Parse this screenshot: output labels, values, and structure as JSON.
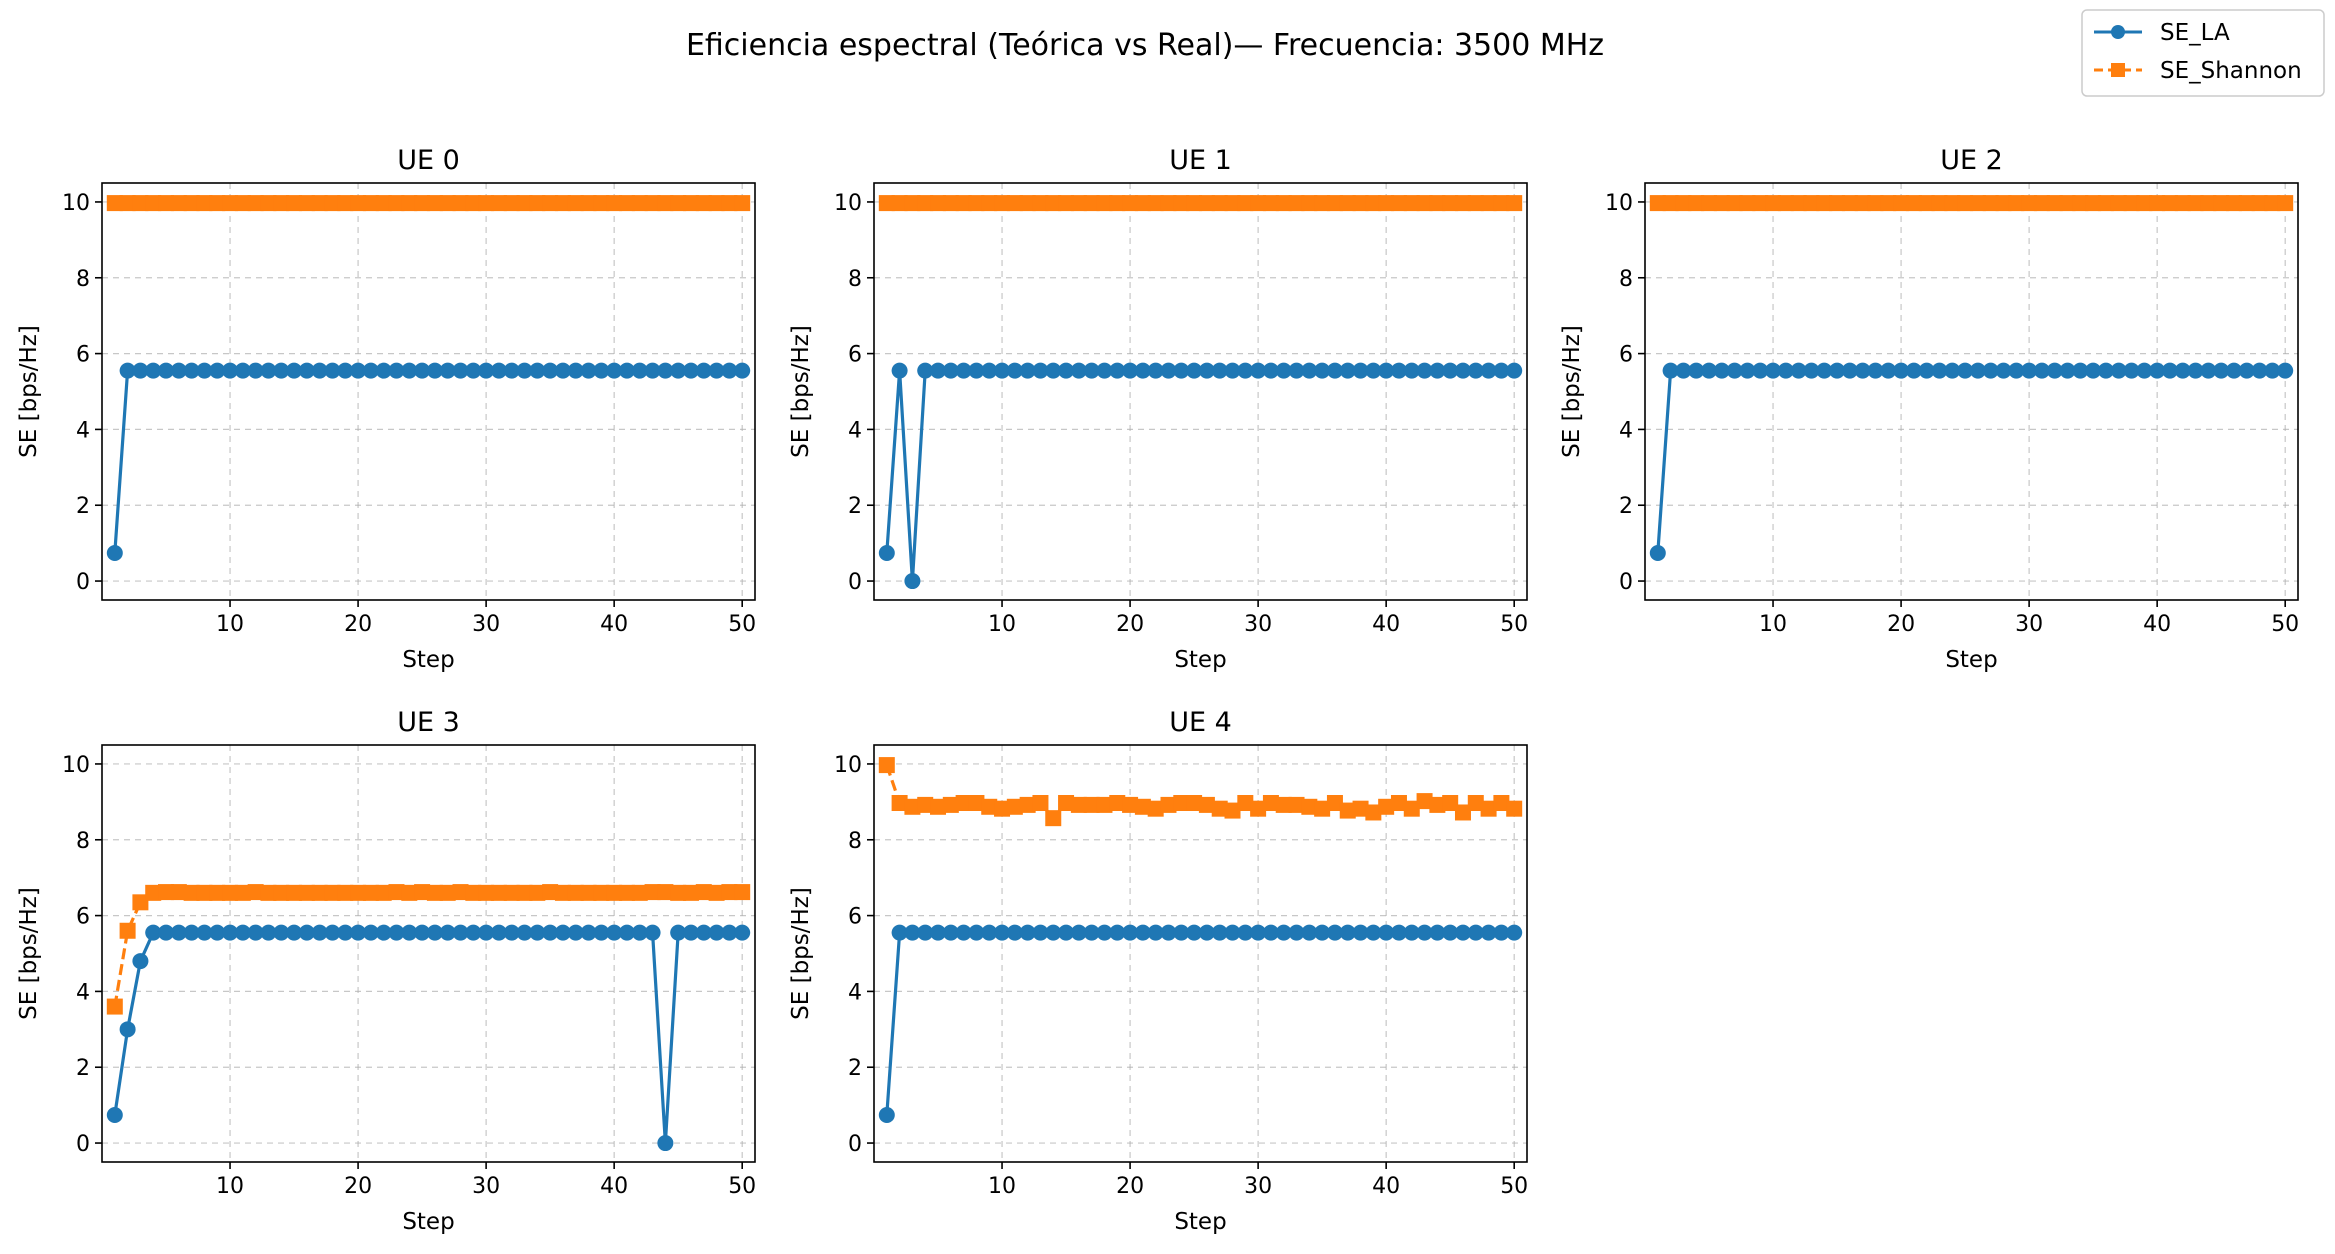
{
  "figure": {
    "title": "Eficiencia espectral (Teórica vs Real)— Frecuencia: 3500 MHz",
    "legend": [
      {
        "label": "SE_LA",
        "color": "#1f77b4",
        "marker": "circle",
        "line": "solid"
      },
      {
        "label": "SE_Shannon",
        "color": "#ff7f0e",
        "marker": "square",
        "line": "dashed"
      }
    ],
    "legend_placement": "top-right"
  },
  "chart_data": [
    {
      "type": "line",
      "title": "UE 0",
      "xlabel": "Step",
      "ylabel": "SE [bps/Hz]",
      "xlim": [
        0,
        51
      ],
      "ylim": [
        -0.5,
        10.5
      ],
      "xticks": [
        10,
        20,
        30,
        40,
        50
      ],
      "yticks": [
        0,
        2,
        4,
        6,
        8,
        10
      ],
      "grid": true,
      "series": [
        {
          "name": "SE_LA",
          "color": "#1f77b4",
          "x_start": 1,
          "values": [
            0.74,
            5.55,
            5.55,
            5.55,
            5.55,
            5.55,
            5.55,
            5.55,
            5.55,
            5.55,
            5.55,
            5.55,
            5.55,
            5.55,
            5.55,
            5.55,
            5.55,
            5.55,
            5.55,
            5.55,
            5.55,
            5.55,
            5.55,
            5.55,
            5.55,
            5.55,
            5.55,
            5.55,
            5.55,
            5.55,
            5.55,
            5.55,
            5.55,
            5.55,
            5.55,
            5.55,
            5.55,
            5.55,
            5.55,
            5.55,
            5.55,
            5.55,
            5.55,
            5.55,
            5.55,
            5.55,
            5.55,
            5.55,
            5.55,
            5.55
          ]
        },
        {
          "name": "SE_Shannon",
          "color": "#ff7f0e",
          "x_start": 1,
          "values": [
            9.97,
            9.97,
            9.97,
            9.97,
            9.97,
            9.97,
            9.97,
            9.97,
            9.97,
            9.97,
            9.97,
            9.97,
            9.97,
            9.97,
            9.97,
            9.97,
            9.97,
            9.97,
            9.97,
            9.97,
            9.97,
            9.97,
            9.97,
            9.97,
            9.97,
            9.97,
            9.97,
            9.97,
            9.97,
            9.97,
            9.97,
            9.97,
            9.97,
            9.97,
            9.97,
            9.97,
            9.97,
            9.97,
            9.97,
            9.97,
            9.97,
            9.97,
            9.97,
            9.97,
            9.97,
            9.97,
            9.97,
            9.97,
            9.97,
            9.97
          ]
        }
      ]
    },
    {
      "type": "line",
      "title": "UE 1",
      "xlabel": "Step",
      "ylabel": "SE [bps/Hz]",
      "xlim": [
        0,
        51
      ],
      "ylim": [
        -0.5,
        10.5
      ],
      "xticks": [
        10,
        20,
        30,
        40,
        50
      ],
      "yticks": [
        0,
        2,
        4,
        6,
        8,
        10
      ],
      "grid": true,
      "series": [
        {
          "name": "SE_LA",
          "color": "#1f77b4",
          "x_start": 1,
          "values": [
            0.74,
            5.55,
            0.0,
            5.55,
            5.55,
            5.55,
            5.55,
            5.55,
            5.55,
            5.55,
            5.55,
            5.55,
            5.55,
            5.55,
            5.55,
            5.55,
            5.55,
            5.55,
            5.55,
            5.55,
            5.55,
            5.55,
            5.55,
            5.55,
            5.55,
            5.55,
            5.55,
            5.55,
            5.55,
            5.55,
            5.55,
            5.55,
            5.55,
            5.55,
            5.55,
            5.55,
            5.55,
            5.55,
            5.55,
            5.55,
            5.55,
            5.55,
            5.55,
            5.55,
            5.55,
            5.55,
            5.55,
            5.55,
            5.55,
            5.55
          ]
        },
        {
          "name": "SE_Shannon",
          "color": "#ff7f0e",
          "x_start": 1,
          "values": [
            9.97,
            9.97,
            9.97,
            9.97,
            9.97,
            9.97,
            9.97,
            9.97,
            9.97,
            9.97,
            9.97,
            9.97,
            9.97,
            9.97,
            9.97,
            9.97,
            9.97,
            9.97,
            9.97,
            9.97,
            9.97,
            9.97,
            9.97,
            9.97,
            9.97,
            9.97,
            9.97,
            9.97,
            9.97,
            9.97,
            9.97,
            9.97,
            9.97,
            9.97,
            9.97,
            9.97,
            9.97,
            9.97,
            9.97,
            9.97,
            9.97,
            9.97,
            9.97,
            9.97,
            9.97,
            9.97,
            9.97,
            9.97,
            9.97,
            9.97
          ]
        }
      ]
    },
    {
      "type": "line",
      "title": "UE 2",
      "xlabel": "Step",
      "ylabel": "SE [bps/Hz]",
      "xlim": [
        0,
        51
      ],
      "ylim": [
        -0.5,
        10.5
      ],
      "xticks": [
        10,
        20,
        30,
        40,
        50
      ],
      "yticks": [
        0,
        2,
        4,
        6,
        8,
        10
      ],
      "grid": true,
      "series": [
        {
          "name": "SE_LA",
          "color": "#1f77b4",
          "x_start": 1,
          "values": [
            0.74,
            5.55,
            5.55,
            5.55,
            5.55,
            5.55,
            5.55,
            5.55,
            5.55,
            5.55,
            5.55,
            5.55,
            5.55,
            5.55,
            5.55,
            5.55,
            5.55,
            5.55,
            5.55,
            5.55,
            5.55,
            5.55,
            5.55,
            5.55,
            5.55,
            5.55,
            5.55,
            5.55,
            5.55,
            5.55,
            5.55,
            5.55,
            5.55,
            5.55,
            5.55,
            5.55,
            5.55,
            5.55,
            5.55,
            5.55,
            5.55,
            5.55,
            5.55,
            5.55,
            5.55,
            5.55,
            5.55,
            5.55,
            5.55,
            5.55
          ]
        },
        {
          "name": "SE_Shannon",
          "color": "#ff7f0e",
          "x_start": 1,
          "values": [
            9.97,
            9.97,
            9.97,
            9.97,
            9.97,
            9.97,
            9.97,
            9.97,
            9.97,
            9.97,
            9.97,
            9.97,
            9.97,
            9.97,
            9.97,
            9.97,
            9.97,
            9.97,
            9.97,
            9.97,
            9.97,
            9.97,
            9.97,
            9.97,
            9.97,
            9.97,
            9.97,
            9.97,
            9.97,
            9.97,
            9.97,
            9.97,
            9.97,
            9.97,
            9.97,
            9.97,
            9.97,
            9.97,
            9.97,
            9.97,
            9.97,
            9.97,
            9.97,
            9.97,
            9.97,
            9.97,
            9.97,
            9.97,
            9.97,
            9.97
          ]
        }
      ]
    },
    {
      "type": "line",
      "title": "UE 3",
      "xlabel": "Step",
      "ylabel": "SE [bps/Hz]",
      "xlim": [
        0,
        51
      ],
      "ylim": [
        -0.5,
        10.5
      ],
      "xticks": [
        10,
        20,
        30,
        40,
        50
      ],
      "yticks": [
        0,
        2,
        4,
        6,
        8,
        10
      ],
      "grid": true,
      "series": [
        {
          "name": "SE_LA",
          "color": "#1f77b4",
          "x_start": 1,
          "values": [
            0.74,
            3.0,
            4.8,
            5.55,
            5.55,
            5.55,
            5.55,
            5.55,
            5.55,
            5.55,
            5.55,
            5.55,
            5.55,
            5.55,
            5.55,
            5.55,
            5.55,
            5.55,
            5.55,
            5.55,
            5.55,
            5.55,
            5.55,
            5.55,
            5.55,
            5.55,
            5.55,
            5.55,
            5.55,
            5.55,
            5.55,
            5.55,
            5.55,
            5.55,
            5.55,
            5.55,
            5.55,
            5.55,
            5.55,
            5.55,
            5.55,
            5.55,
            5.55,
            0.0,
            5.55,
            5.55,
            5.55,
            5.55,
            5.55,
            5.55
          ]
        },
        {
          "name": "SE_Shannon",
          "color": "#ff7f0e",
          "x_start": 1,
          "values": [
            3.6,
            5.6,
            6.35,
            6.6,
            6.62,
            6.62,
            6.6,
            6.6,
            6.6,
            6.6,
            6.6,
            6.62,
            6.6,
            6.6,
            6.6,
            6.6,
            6.6,
            6.6,
            6.6,
            6.6,
            6.6,
            6.6,
            6.62,
            6.6,
            6.62,
            6.6,
            6.6,
            6.62,
            6.6,
            6.6,
            6.6,
            6.6,
            6.6,
            6.6,
            6.62,
            6.6,
            6.6,
            6.6,
            6.6,
            6.6,
            6.6,
            6.6,
            6.62,
            6.62,
            6.6,
            6.6,
            6.62,
            6.6,
            6.62,
            6.62
          ]
        }
      ]
    },
    {
      "type": "line",
      "title": "UE 4",
      "xlabel": "Step",
      "ylabel": "SE [bps/Hz]",
      "xlim": [
        0,
        51
      ],
      "ylim": [
        -0.5,
        10.5
      ],
      "xticks": [
        10,
        20,
        30,
        40,
        50
      ],
      "yticks": [
        0,
        2,
        4,
        6,
        8,
        10
      ],
      "grid": true,
      "series": [
        {
          "name": "SE_LA",
          "color": "#1f77b4",
          "x_start": 1,
          "values": [
            0.74,
            5.55,
            5.55,
            5.55,
            5.55,
            5.55,
            5.55,
            5.55,
            5.55,
            5.55,
            5.55,
            5.55,
            5.55,
            5.55,
            5.55,
            5.55,
            5.55,
            5.55,
            5.55,
            5.55,
            5.55,
            5.55,
            5.55,
            5.55,
            5.55,
            5.55,
            5.55,
            5.55,
            5.55,
            5.55,
            5.55,
            5.55,
            5.55,
            5.55,
            5.55,
            5.55,
            5.55,
            5.55,
            5.55,
            5.55,
            5.55,
            5.55,
            5.55,
            5.55,
            5.55,
            5.55,
            5.55,
            5.55,
            5.55,
            5.55
          ]
        },
        {
          "name": "SE_Shannon",
          "color": "#ff7f0e",
          "x_start": 1,
          "values": [
            9.97,
            8.97,
            8.87,
            8.92,
            8.87,
            8.92,
            8.97,
            8.97,
            8.87,
            8.82,
            8.87,
            8.92,
            8.97,
            8.57,
            8.97,
            8.92,
            8.92,
            8.92,
            8.97,
            8.92,
            8.87,
            8.82,
            8.92,
            8.97,
            8.97,
            8.92,
            8.82,
            8.77,
            8.97,
            8.82,
            8.97,
            8.92,
            8.92,
            8.87,
            8.82,
            8.97,
            8.77,
            8.82,
            8.72,
            8.87,
            8.97,
            8.82,
            9.02,
            8.92,
            8.97,
            8.72,
            8.97,
            8.82,
            8.97,
            8.82
          ]
        }
      ]
    }
  ]
}
